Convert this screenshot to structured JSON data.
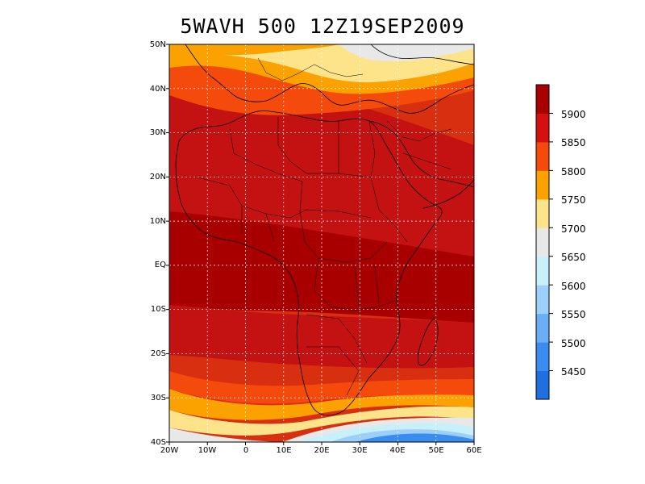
{
  "title": "5WAVH 500 12Z19SEP2009",
  "map": {
    "lat_ticks": [
      "50N",
      "40N",
      "30N",
      "20N",
      "10N",
      "EQ",
      "10S",
      "20S",
      "30S",
      "40S"
    ],
    "lon_ticks": [
      "20W",
      "10W",
      "0",
      "10E",
      "20E",
      "30E",
      "40E",
      "50E",
      "60E"
    ],
    "lat_range": [
      -40,
      50
    ],
    "lon_range": [
      -20,
      60
    ],
    "grid": "dotted"
  },
  "colorbar": {
    "levels": [
      "5450",
      "5500",
      "5550",
      "5600",
      "5650",
      "5700",
      "5750",
      "5800",
      "5850",
      "5900"
    ],
    "colors": [
      "#1f6fe0",
      "#3a8cf0",
      "#6aaef5",
      "#9ccff9",
      "#c8f0fb",
      "#e8e8e8",
      "#fde48a",
      "#fca200",
      "#f44a0c",
      "#d41010",
      "#a80000"
    ]
  },
  "colors": {
    "darkest": "#a80000",
    "dark": "#c41212",
    "red": "#d82f10",
    "orange_red": "#f44a0c",
    "orange": "#fca200",
    "yellow": "#fde48a",
    "grey": "#e8e8e8"
  }
}
